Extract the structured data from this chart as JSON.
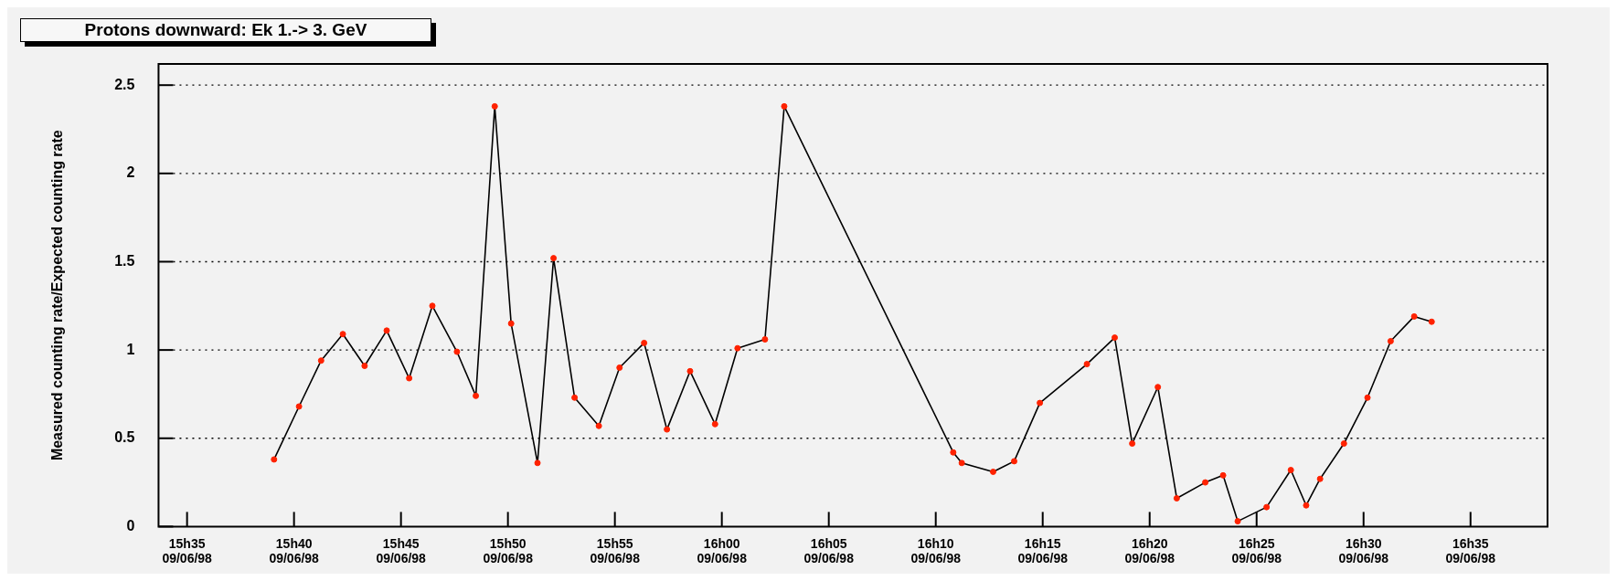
{
  "chart_data": {
    "type": "line",
    "title": "Protons downward: Ek 1.-> 3. GeV",
    "ylabel": "Measured counting rate/Expected counting rate",
    "xlim": [
      "1998-06-09T15:33:40",
      "1998-06-09T16:38:36"
    ],
    "xticks": [
      {
        "value": "1998-06-09T15:35",
        "label": "15h35\n09/06/98"
      },
      {
        "value": "1998-06-09T15:40",
        "label": "15h40\n09/06/98"
      },
      {
        "value": "1998-06-09T15:45",
        "label": "15h45\n09/06/98"
      },
      {
        "value": "1998-06-09T15:50",
        "label": "15h50\n09/06/98"
      },
      {
        "value": "1998-06-09T15:55",
        "label": "15h55\n09/06/98"
      },
      {
        "value": "1998-06-09T16:00",
        "label": "16h00\n09/06/98"
      },
      {
        "value": "1998-06-09T16:05",
        "label": "16h05\n09/06/98"
      },
      {
        "value": "1998-06-09T16:10",
        "label": "16h10\n09/06/98"
      },
      {
        "value": "1998-06-09T16:15",
        "label": "16h15\n09/06/98"
      },
      {
        "value": "1998-06-09T16:20",
        "label": "16h20\n09/06/98"
      },
      {
        "value": "1998-06-09T16:25",
        "label": "16h25\n09/06/98"
      },
      {
        "value": "1998-06-09T16:30",
        "label": "16h30\n09/06/98"
      },
      {
        "value": "1998-06-09T16:35",
        "label": "16h35\n09/06/98"
      }
    ],
    "ylim": [
      0,
      2.62
    ],
    "yticks": [
      0,
      0.5,
      1,
      1.5,
      2,
      2.5
    ],
    "grid": "y",
    "legend": false,
    "marker": "circle",
    "line_style": "solid",
    "series": [
      {
        "color": "#000000",
        "colors": [
          "#ff2200",
          "#ff2200",
          "#ff2200",
          "#ff2200",
          "#ff2200",
          "#ff2200",
          "#ff2200",
          "#ff2200",
          "#ff2200",
          "#ff2200",
          "#ff2200",
          "#ff2200",
          "#ff2200",
          "#ff2200",
          "#ff2200",
          "#ff2200",
          "#ff2200",
          "#ff2200",
          "#ff2200",
          "#ff2200",
          "#ff2200",
          "#ff2200",
          "#ff2200",
          "#ff2200",
          "#ff2200",
          "#ff2200",
          "#ff2200",
          "#ff2200",
          "#ff2200",
          "#ff2200",
          "#ff2200",
          "#ff2200",
          "#ff2200",
          "#ff2200",
          "#ff2200",
          "#ff2200",
          "#ff2200",
          "#ff2200",
          "#ff2200",
          "#ff2200",
          "#ff2200",
          "#ff2200",
          "#ff2200",
          "#ff2200",
          "#ff2200",
          "#ff2200"
        ],
        "x": [
          "1998-06-09T15:39:04",
          "1998-06-09T15:40:14",
          "1998-06-09T15:41:16",
          "1998-06-09T15:42:17",
          "1998-06-09T15:43:18",
          "1998-06-09T15:44:20",
          "1998-06-09T15:45:23",
          "1998-06-09T15:46:28",
          "1998-06-09T15:47:37",
          "1998-06-09T15:48:30",
          "1998-06-09T15:49:23",
          "1998-06-09T15:50:09",
          "1998-06-09T15:51:23",
          "1998-06-09T15:52:08",
          "1998-06-09T15:53:07",
          "1998-06-09T15:54:15",
          "1998-06-09T15:55:13",
          "1998-06-09T15:56:22",
          "1998-06-09T15:57:26",
          "1998-06-09T15:58:31",
          "1998-06-09T15:59:41",
          "1998-06-09T16:00:44",
          "1998-06-09T16:02:01",
          "1998-06-09T16:02:55",
          "1998-06-09T16:10:49",
          "1998-06-09T16:11:13",
          "1998-06-09T16:12:41",
          "1998-06-09T16:13:40",
          "1998-06-09T16:14:52",
          "1998-06-09T16:17:04",
          "1998-06-09T16:18:22",
          "1998-06-09T16:19:11",
          "1998-06-09T16:20:23",
          "1998-06-09T16:21:16",
          "1998-06-09T16:22:36",
          "1998-06-09T16:23:26",
          "1998-06-09T16:24:07",
          "1998-06-09T16:25:28",
          "1998-06-09T16:26:36",
          "1998-06-09T16:27:19",
          "1998-06-09T16:27:58",
          "1998-06-09T16:29:05",
          "1998-06-09T16:30:11",
          "1998-06-09T16:31:16",
          "1998-06-09T16:32:22",
          "1998-06-09T16:33:11"
        ],
        "values": [
          0.38,
          0.68,
          0.94,
          1.09,
          0.91,
          1.11,
          0.84,
          1.25,
          0.99,
          0.74,
          2.38,
          1.15,
          0.36,
          1.52,
          0.73,
          0.57,
          0.9,
          1.04,
          0.55,
          0.88,
          0.58,
          1.01,
          1.06,
          2.38,
          0.42,
          0.36,
          0.31,
          0.37,
          0.7,
          0.92,
          1.07,
          0.47,
          0.79,
          0.16,
          0.25,
          0.29,
          0.03,
          0.11,
          0.32,
          0.12,
          0.27,
          0.47,
          0.73,
          1.05,
          1.19,
          1.16
        ]
      }
    ]
  }
}
